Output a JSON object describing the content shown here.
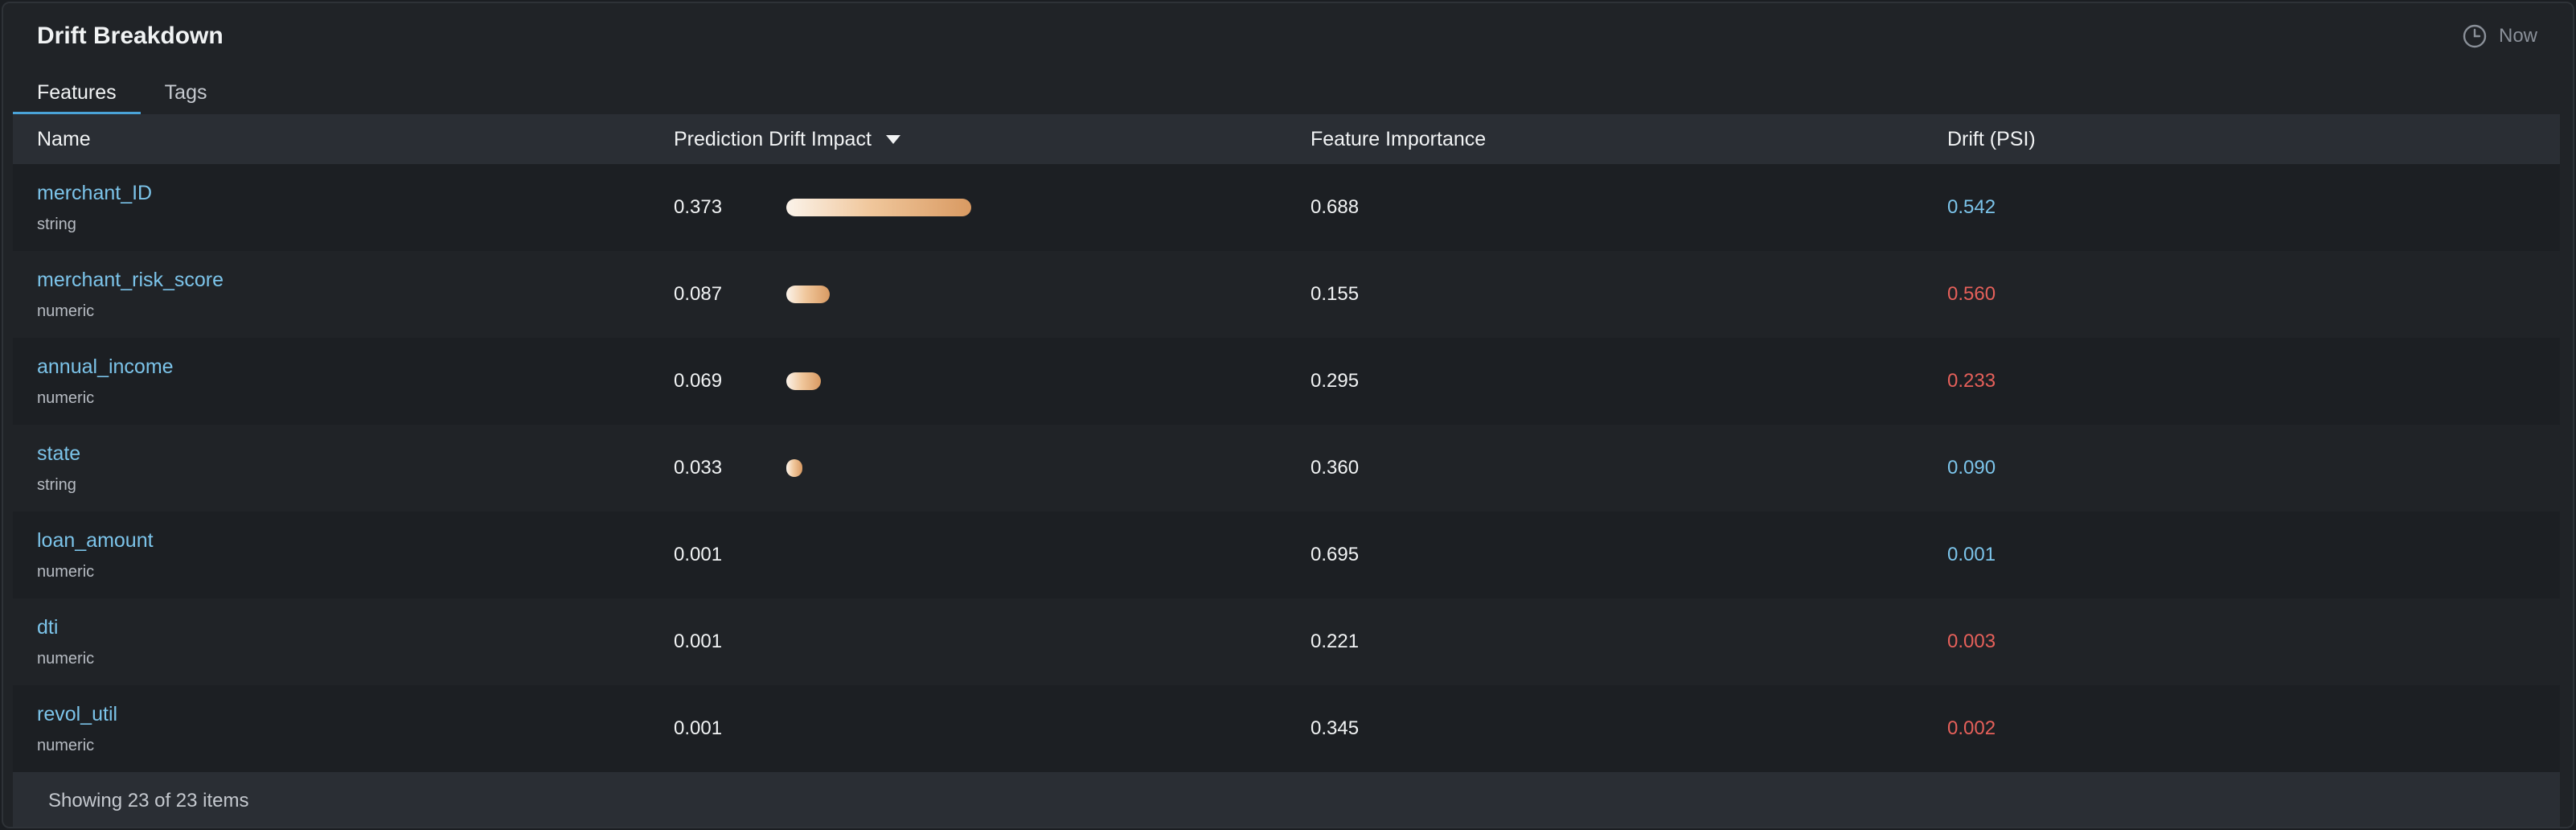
{
  "header": {
    "title": "Drift Breakdown",
    "time_label": "Now",
    "time_icon": "clock-icon"
  },
  "tabs": [
    {
      "label": "Features",
      "active": true
    },
    {
      "label": "Tags",
      "active": false
    }
  ],
  "table": {
    "columns": {
      "name": "Name",
      "impact": "Prediction Drift Impact",
      "importance": "Feature Importance",
      "psi": "Drift (PSI)"
    },
    "sort_icon": "sort-desc-caret-icon",
    "rows": [
      {
        "name": "merchant_ID",
        "type": "string",
        "impact": "0.373",
        "importance": "0.688",
        "psi": "0.542",
        "psi_status": "ok"
      },
      {
        "name": "merchant_risk_score",
        "type": "numeric",
        "impact": "0.087",
        "importance": "0.155",
        "psi": "0.560",
        "psi_status": "warn"
      },
      {
        "name": "annual_income",
        "type": "numeric",
        "impact": "0.069",
        "importance": "0.295",
        "psi": "0.233",
        "psi_status": "warn"
      },
      {
        "name": "state",
        "type": "string",
        "impact": "0.033",
        "importance": "0.360",
        "psi": "0.090",
        "psi_status": "ok"
      },
      {
        "name": "loan_amount",
        "type": "numeric",
        "impact": "0.001",
        "importance": "0.695",
        "psi": "0.001",
        "psi_status": "ok"
      },
      {
        "name": "dti",
        "type": "numeric",
        "impact": "0.001",
        "importance": "0.221",
        "psi": "0.003",
        "psi_status": "warn"
      },
      {
        "name": "revol_util",
        "type": "numeric",
        "impact": "0.001",
        "importance": "0.345",
        "psi": "0.002",
        "psi_status": "warn"
      }
    ]
  },
  "footer": {
    "status": "Showing 23 of 23 items"
  },
  "colors": {
    "link": "#7cc4ea",
    "warn": "#e5605a",
    "tab_indicator": "#4aa3d8",
    "bar_start": "#fbf3ea",
    "bar_end": "#d99a62"
  }
}
